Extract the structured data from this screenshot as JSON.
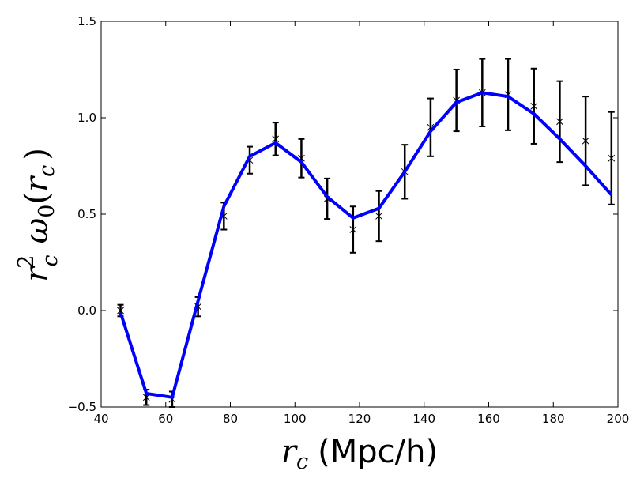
{
  "chart_data": {
    "type": "line",
    "title": "",
    "xlabel": "r_c (Mpc/h)",
    "xlabel_var": "r",
    "xlabel_sub": "c",
    "xlabel_unit": "(Mpc/h)",
    "ylabel": "r_c^2 ω_0(r_c)",
    "ylabel_r": "r",
    "ylabel_sup": "2",
    "ylabel_sub": "c",
    "ylabel_omega": "ω",
    "ylabel_omega_sub": "0",
    "ylabel_open": "(",
    "ylabel_close": ")",
    "xlim": [
      40,
      200
    ],
    "ylim": [
      -0.5,
      1.5
    ],
    "xticks": [
      "40",
      "60",
      "80",
      "100",
      "120",
      "140",
      "160",
      "180",
      "200"
    ],
    "yticks": [
      "−0.5",
      "0.0",
      "0.5",
      "1.0",
      "1.5"
    ],
    "grid": false,
    "legend": "none",
    "colors": {
      "model_line": "#0000ff",
      "data_points": "#000000"
    },
    "series": [
      {
        "kind": "errorbar",
        "x": [
          46,
          54,
          62,
          70,
          78,
          86,
          94,
          102,
          110,
          118,
          126,
          134,
          142,
          150,
          158,
          166,
          174,
          182,
          190,
          198
        ],
        "y": [
          0.0,
          -0.45,
          -0.46,
          0.02,
          0.49,
          0.78,
          0.89,
          0.79,
          0.58,
          0.42,
          0.49,
          0.72,
          0.95,
          1.09,
          1.13,
          1.12,
          1.06,
          0.98,
          0.88,
          0.79
        ],
        "yerr": [
          0.03,
          0.04,
          0.04,
          0.05,
          0.07,
          0.07,
          0.085,
          0.1,
          0.105,
          0.12,
          0.13,
          0.14,
          0.15,
          0.16,
          0.175,
          0.185,
          0.195,
          0.21,
          0.23,
          0.24
        ]
      },
      {
        "kind": "line",
        "x": [
          46,
          54,
          62,
          70,
          78,
          86,
          94,
          102,
          110,
          118,
          126,
          134,
          142,
          150,
          158,
          166,
          174,
          182,
          190,
          198
        ],
        "y": [
          -0.01,
          -0.43,
          -0.45,
          0.05,
          0.54,
          0.8,
          0.87,
          0.77,
          0.59,
          0.48,
          0.53,
          0.72,
          0.93,
          1.08,
          1.13,
          1.11,
          1.02,
          0.89,
          0.75,
          0.6
        ]
      }
    ]
  }
}
